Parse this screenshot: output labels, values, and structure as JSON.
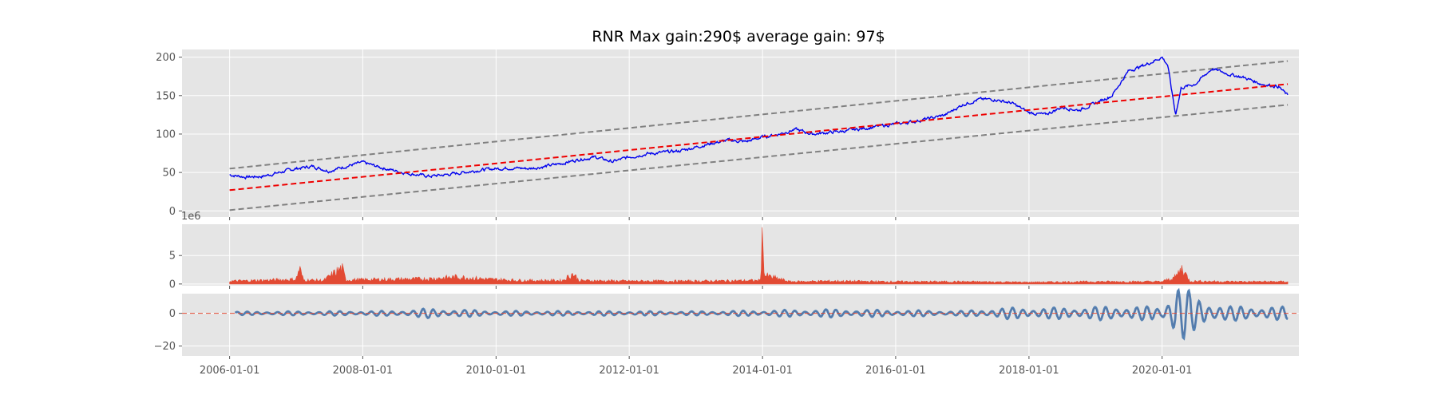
{
  "title": "RNR Max gain:290$  average gain: 97$",
  "colors": {
    "panel_background": "#e5e5e5",
    "grid": "#ffffff",
    "price_line": "#0000ee",
    "trend_line": "#ee0000",
    "channel_line": "#808080",
    "volume": "#e24a33",
    "oscillator": "#4c7bb0",
    "oscillator_overlay": "#e24a33"
  },
  "chart_data": [
    {
      "type": "line",
      "panel": "price",
      "x_range": [
        "2005-04-15",
        "2022-01-20"
      ],
      "ylim": [
        -8,
        210
      ],
      "xtick_dates": [
        "2006-01-01",
        "2008-01-01",
        "2010-01-01",
        "2012-01-01",
        "2014-01-01",
        "2016-01-01",
        "2018-01-01",
        "2020-01-01"
      ],
      "xtick_labels": [
        "2006-01-01",
        "2008-01-01",
        "2010-01-01",
        "2012-01-01",
        "2014-01-01",
        "2016-01-01",
        "2018-01-01",
        "2020-01-01"
      ],
      "yticks": [
        0,
        50,
        100,
        150,
        200
      ],
      "ytick_labels": [
        "0",
        "50",
        "100",
        "150",
        "200"
      ],
      "grid": true,
      "price": [
        [
          "2006-01-01",
          47
        ],
        [
          "2006-04-01",
          44
        ],
        [
          "2006-07-01",
          45
        ],
        [
          "2006-10-01",
          50
        ],
        [
          "2007-01-01",
          55
        ],
        [
          "2007-04-01",
          58
        ],
        [
          "2007-07-01",
          52
        ],
        [
          "2007-10-01",
          58
        ],
        [
          "2008-01-01",
          63
        ],
        [
          "2008-04-01",
          57
        ],
        [
          "2008-07-01",
          52
        ],
        [
          "2008-10-01",
          48
        ],
        [
          "2009-01-01",
          45
        ],
        [
          "2009-04-01",
          47
        ],
        [
          "2009-07-01",
          50
        ],
        [
          "2009-10-01",
          53
        ],
        [
          "2010-01-01",
          55
        ],
        [
          "2010-04-01",
          56
        ],
        [
          "2010-07-01",
          55
        ],
        [
          "2010-10-01",
          58
        ],
        [
          "2011-01-01",
          62
        ],
        [
          "2011-04-01",
          67
        ],
        [
          "2011-07-01",
          70
        ],
        [
          "2011-10-01",
          64
        ],
        [
          "2012-01-01",
          70
        ],
        [
          "2012-04-01",
          74
        ],
        [
          "2012-07-01",
          76
        ],
        [
          "2012-10-01",
          78
        ],
        [
          "2013-01-01",
          83
        ],
        [
          "2013-04-01",
          88
        ],
        [
          "2013-07-01",
          92
        ],
        [
          "2013-10-01",
          90
        ],
        [
          "2014-01-01",
          96
        ],
        [
          "2014-04-01",
          100
        ],
        [
          "2014-07-01",
          106
        ],
        [
          "2014-10-01",
          100
        ],
        [
          "2015-01-01",
          102
        ],
        [
          "2015-04-01",
          104
        ],
        [
          "2015-07-01",
          107
        ],
        [
          "2015-10-01",
          110
        ],
        [
          "2016-01-01",
          113
        ],
        [
          "2016-04-01",
          116
        ],
        [
          "2016-07-01",
          120
        ],
        [
          "2016-10-01",
          125
        ],
        [
          "2017-01-01",
          138
        ],
        [
          "2017-04-01",
          145
        ],
        [
          "2017-07-01",
          145
        ],
        [
          "2017-10-01",
          140
        ],
        [
          "2018-01-01",
          128
        ],
        [
          "2018-04-01",
          125
        ],
        [
          "2018-07-01",
          135
        ],
        [
          "2018-10-01",
          131
        ],
        [
          "2019-01-01",
          140
        ],
        [
          "2019-04-01",
          150
        ],
        [
          "2019-07-01",
          182
        ],
        [
          "2019-10-01",
          190
        ],
        [
          "2020-01-01",
          200
        ],
        [
          "2020-02-01",
          190
        ],
        [
          "2020-03-15",
          125
        ],
        [
          "2020-04-15",
          160
        ],
        [
          "2020-07-01",
          165
        ],
        [
          "2020-10-01",
          185
        ],
        [
          "2021-01-01",
          178
        ],
        [
          "2021-04-01",
          173
        ],
        [
          "2021-07-01",
          165
        ],
        [
          "2021-10-01",
          162
        ],
        [
          "2021-11-20",
          150
        ]
      ],
      "trend": [
        [
          "2006-01-01",
          27
        ],
        [
          "2021-11-20",
          165
        ]
      ],
      "channel_upper": [
        [
          "2006-01-01",
          55
        ],
        [
          "2021-11-20",
          195
        ]
      ],
      "channel_lower": [
        [
          "2006-01-01",
          1
        ],
        [
          "2021-11-20",
          138
        ]
      ]
    },
    {
      "type": "area",
      "panel": "volume",
      "offset_label": "1e6",
      "ylim": [
        -0.3,
        10.5
      ],
      "yticks": [
        0,
        5
      ],
      "ytick_labels": [
        "0",
        "5"
      ],
      "grid": true,
      "series": [
        {
          "values": [
            [
              "2006-01-01",
              0.5
            ],
            [
              "2006-06-01",
              0.6
            ],
            [
              "2007-01-01",
              0.8
            ],
            [
              "2007-01-20",
              2.8
            ],
            [
              "2007-02-10",
              0.7
            ],
            [
              "2007-06-01",
              0.6
            ],
            [
              "2007-09-10",
              2.8
            ],
            [
              "2007-10-01",
              0.7
            ],
            [
              "2008-06-01",
              0.8
            ],
            [
              "2009-01-01",
              0.9
            ],
            [
              "2009-06-01",
              1.2
            ],
            [
              "2009-12-01",
              0.8
            ],
            [
              "2010-06-01",
              0.6
            ],
            [
              "2011-01-01",
              0.6
            ],
            [
              "2011-03-01",
              1.8
            ],
            [
              "2011-04-01",
              0.6
            ],
            [
              "2012-01-01",
              0.5
            ],
            [
              "2013-01-01",
              0.5
            ],
            [
              "2013-12-20",
              0.6
            ],
            [
              "2014-01-01",
              8.5
            ],
            [
              "2014-01-12",
              1.5
            ],
            [
              "2014-06-01",
              0.4
            ],
            [
              "2015-01-01",
              0.5
            ],
            [
              "2016-01-01",
              0.4
            ],
            [
              "2017-01-01",
              0.4
            ],
            [
              "2018-01-01",
              0.3
            ],
            [
              "2019-01-01",
              0.4
            ],
            [
              "2020-01-01",
              0.4
            ],
            [
              "2020-03-15",
              1.2
            ],
            [
              "2020-06-01",
              0.5
            ],
            [
              "2020-04-20",
              2.8
            ],
            [
              "2021-01-01",
              0.4
            ],
            [
              "2021-11-20",
              0.4
            ]
          ]
        }
      ]
    },
    {
      "type": "line",
      "panel": "oscillator",
      "ylim": [
        -26,
        12
      ],
      "yticks": [
        0,
        -20
      ],
      "ytick_labels": [
        "0",
        "−20"
      ],
      "grid": true,
      "amplitude_profile": [
        [
          "2006-01-01",
          1.0
        ],
        [
          "2008-06-01",
          1.5
        ],
        [
          "2009-01-01",
          3
        ],
        [
          "2010-01-01",
          1.5
        ],
        [
          "2013-01-01",
          1.2
        ],
        [
          "2015-01-01",
          2.5
        ],
        [
          "2017-01-01",
          1.5
        ],
        [
          "2017-09-01",
          3.5
        ],
        [
          "2018-06-01",
          3.5
        ],
        [
          "2019-06-01",
          4.5
        ],
        [
          "2020-01-01",
          4
        ],
        [
          "2020-03-20",
          22
        ],
        [
          "2020-07-01",
          10
        ],
        [
          "2021-01-01",
          4.5
        ],
        [
          "2021-11-20",
          4
        ]
      ]
    }
  ]
}
